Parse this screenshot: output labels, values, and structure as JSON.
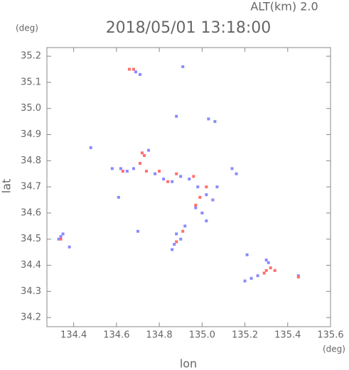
{
  "chart_data": {
    "type": "scatter",
    "title": "2018/05/01 13:18:00",
    "subtitle": "ALT(km) 2.0",
    "y_unit": "(deg)",
    "x_unit": "(deg)",
    "x_label": "lon",
    "y_label": "lat",
    "xlim": [
      134.275,
      135.6
    ],
    "ylim": [
      34.165,
      35.233
    ],
    "xticks": [
      134.4,
      134.6,
      134.8,
      {
        "value": 135,
        "label": "135.0"
      },
      135.2,
      135.4,
      135.6
    ],
    "yticks": [
      34.2,
      34.3,
      34.4,
      34.5,
      34.6,
      34.7,
      34.8,
      34.9,
      {
        "value": 35,
        "label": "35.0"
      },
      35.1,
      35.2
    ],
    "series": [
      {
        "color": "#8a8aff",
        "x": [
          134.34,
          134.35,
          134.33,
          134.38,
          134.69,
          134.71,
          134.91,
          135.03,
          135.06,
          134.88,
          134.58,
          134.62,
          134.65,
          134.68,
          134.78,
          134.82,
          134.86,
          134.9,
          134.94,
          134.98,
          135.02,
          135.05,
          134.97,
          135.0,
          135.14,
          135.16,
          135.07,
          134.61,
          134.92,
          134.9,
          134.87,
          134.86,
          134.88,
          134.7,
          135.02,
          135.2,
          135.23,
          135.26,
          135.3,
          135.31,
          135.21,
          135.45,
          134.48,
          134.75
        ],
        "y": [
          34.51,
          34.52,
          34.5,
          34.47,
          35.14,
          35.13,
          35.16,
          34.96,
          34.95,
          34.97,
          34.77,
          34.77,
          34.76,
          34.77,
          34.75,
          34.73,
          34.72,
          34.74,
          34.73,
          34.7,
          34.67,
          34.65,
          34.62,
          34.6,
          34.77,
          34.75,
          34.7,
          34.66,
          34.55,
          34.5,
          34.48,
          34.46,
          34.52,
          34.53,
          34.57,
          34.34,
          34.35,
          34.36,
          34.42,
          34.41,
          34.44,
          34.36,
          34.85,
          34.84
        ]
      },
      {
        "color": "#ff6f6f",
        "x": [
          134.34,
          134.66,
          134.68,
          134.72,
          134.73,
          134.71,
          134.8,
          134.84,
          134.88,
          134.96,
          135.02,
          134.99,
          134.97,
          134.74,
          134.63,
          134.91,
          135.3,
          135.32,
          135.34,
          135.29,
          135.45,
          134.88
        ],
        "y": [
          34.5,
          35.15,
          35.15,
          34.83,
          34.82,
          34.79,
          34.76,
          34.72,
          34.75,
          34.74,
          34.7,
          34.66,
          34.63,
          34.76,
          34.76,
          34.53,
          34.38,
          34.39,
          34.38,
          34.37,
          34.355,
          34.49
        ]
      }
    ]
  }
}
